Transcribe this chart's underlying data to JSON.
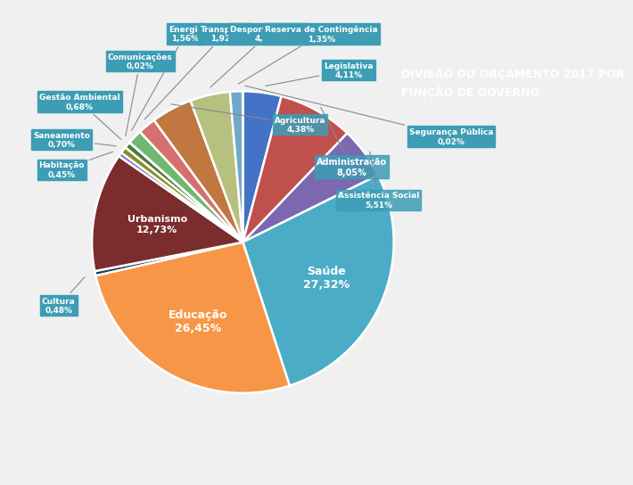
{
  "ordered_names": [
    "Legislativa",
    "Administração",
    "Assistência Social",
    "Saúde",
    "Educação",
    "Cultura",
    "Urbanismo",
    "Habitação",
    "Saneamento",
    "Gestão Ambiental",
    "Comunicações",
    "Energia",
    "Transporte",
    "Agricultura",
    "Desporto e Lazer",
    "Reserva de Contingência",
    "Segurança Pública"
  ],
  "ordered_values": [
    4.11,
    8.05,
    5.51,
    27.32,
    26.45,
    0.48,
    12.73,
    0.45,
    0.7,
    0.68,
    0.02,
    1.56,
    1.92,
    4.38,
    4.27,
    1.35,
    0.02
  ],
  "ordered_pcts": [
    "4,11%",
    "8,05%",
    "5,51%",
    "27,32%",
    "26,45%",
    "0,48%",
    "12,73%",
    "0,45%",
    "0,70%",
    "0,68%",
    "0,02%",
    "1,56%",
    "1,92%",
    "4,38%",
    "4,27%",
    "1,35%",
    "0,02%"
  ],
  "ordered_colors": [
    "#4472C4",
    "#C0504D",
    "#7B68B0",
    "#4BACC6",
    "#F79646",
    "#1F3864",
    "#7B2C2C",
    "#7878B8",
    "#8B8B28",
    "#4C7A3C",
    "#4895A8",
    "#70B870",
    "#D47070",
    "#C07840",
    "#B8C080",
    "#70A8C8",
    "#4BACC6"
  ],
  "bg_color": "#F0F0F0",
  "title_bg": "#1F4E79",
  "title_text": "DIVISÃO DO ORÇAMENTO 2017 POR\nFUNÇÃO DE GOVERNO",
  "teal": "#3D9DB5",
  "label_fontsize": 6.5
}
